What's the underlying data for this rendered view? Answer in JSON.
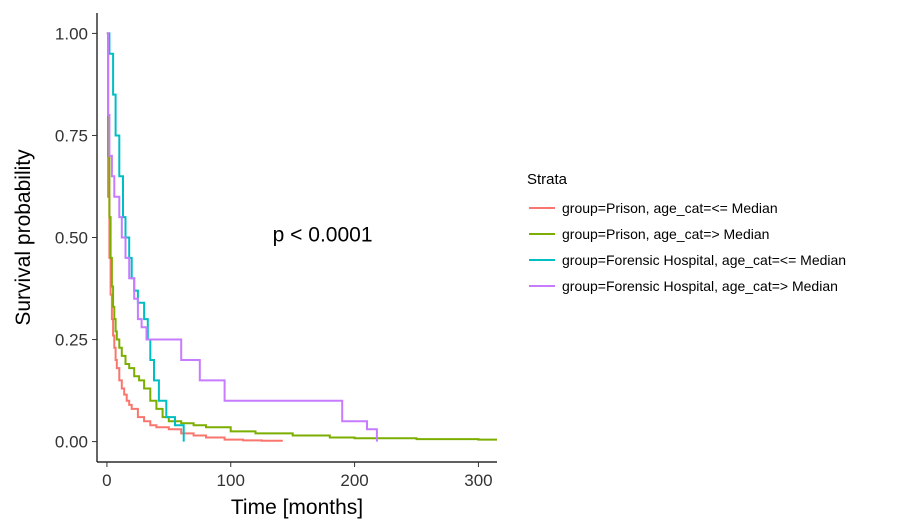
{
  "chart_data": {
    "type": "line",
    "step": true,
    "xlabel": "Time [months]",
    "ylabel": "Survival probability",
    "xlim": [
      -8,
      315
    ],
    "ylim": [
      -0.05,
      1.05
    ],
    "x_ticks": [
      0,
      100,
      200,
      300
    ],
    "x_tick_labels": [
      "0",
      "100",
      "200",
      "300"
    ],
    "y_ticks": [
      0,
      0.25,
      0.5,
      0.75,
      1.0
    ],
    "y_tick_labels": [
      "0.00",
      "0.25",
      "0.50",
      "0.75",
      "1.00"
    ],
    "grid": false,
    "annotation": {
      "text": "p < 0.0001",
      "x": 150,
      "y": 0.49
    },
    "legend": {
      "title": "Strata",
      "position": "right"
    },
    "series": [
      {
        "name": "group=Prison, age_cat=<= Median",
        "color": "#F8766D",
        "x": [
          0,
          1,
          2,
          3,
          4,
          5,
          6,
          7,
          8,
          10,
          12,
          14,
          16,
          18,
          20,
          25,
          30,
          35,
          40,
          50,
          60,
          70,
          80,
          95,
          110,
          125,
          142
        ],
        "y": [
          1.0,
          0.6,
          0.45,
          0.36,
          0.3,
          0.26,
          0.23,
          0.2,
          0.18,
          0.15,
          0.13,
          0.115,
          0.1,
          0.09,
          0.08,
          0.06,
          0.05,
          0.04,
          0.035,
          0.03,
          0.02,
          0.015,
          0.01,
          0.005,
          0.003,
          0.002,
          0.002
        ]
      },
      {
        "name": "group=Prison, age_cat=> Median",
        "color": "#7CAE00",
        "x": [
          0,
          1,
          2,
          3,
          4,
          5,
          6,
          7,
          8,
          10,
          12,
          15,
          18,
          22,
          26,
          30,
          35,
          40,
          45,
          50,
          60,
          70,
          80,
          100,
          120,
          150,
          180,
          200,
          250,
          300,
          315
        ],
        "y": [
          1.0,
          0.7,
          0.55,
          0.45,
          0.38,
          0.33,
          0.3,
          0.27,
          0.25,
          0.23,
          0.21,
          0.19,
          0.18,
          0.16,
          0.15,
          0.13,
          0.1,
          0.08,
          0.06,
          0.05,
          0.045,
          0.04,
          0.035,
          0.025,
          0.02,
          0.015,
          0.01,
          0.008,
          0.006,
          0.005,
          0.005
        ]
      },
      {
        "name": "group=Forensic Hospital, age_cat=<= Median",
        "color": "#00BFC4",
        "x": [
          0,
          2,
          5,
          7,
          10,
          13,
          15,
          18,
          20,
          22,
          25,
          30,
          33,
          35,
          38,
          42,
          48,
          55,
          62
        ],
        "y": [
          1.0,
          0.95,
          0.85,
          0.75,
          0.65,
          0.55,
          0.5,
          0.45,
          0.4,
          0.37,
          0.34,
          0.3,
          0.25,
          0.2,
          0.15,
          0.1,
          0.06,
          0.04,
          0.0
        ]
      },
      {
        "name": "group=Forensic Hospital, age_cat=> Median",
        "color": "#C77CFF",
        "x": [
          0,
          1,
          2,
          4,
          6,
          10,
          12,
          15,
          18,
          22,
          25,
          28,
          32,
          35,
          40,
          50,
          60,
          75,
          95,
          130,
          160,
          190,
          210,
          218
        ],
        "y": [
          1.0,
          0.8,
          0.7,
          0.65,
          0.6,
          0.55,
          0.5,
          0.45,
          0.4,
          0.35,
          0.3,
          0.28,
          0.25,
          0.25,
          0.25,
          0.25,
          0.2,
          0.15,
          0.1,
          0.1,
          0.1,
          0.05,
          0.03,
          0.0
        ]
      }
    ]
  }
}
